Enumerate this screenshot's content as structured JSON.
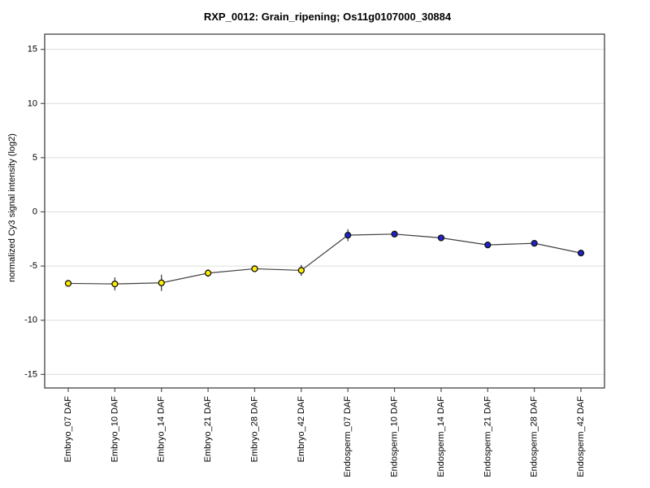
{
  "page": {
    "background": "#ffffff"
  },
  "chart_data": {
    "type": "line",
    "title": "RXP_0012: Grain_ripening; Os11g0107000_30884",
    "xlabel": "",
    "ylabel": "normalized Cy3 signal intensity (log2)",
    "categories": [
      "Embryo_07 DAF",
      "Embryo_10 DAF",
      "Embryo_14 DAF",
      "Embryo_21 DAF",
      "Embryo_28 DAF",
      "Embryo_42 DAF",
      "Endosperm_07 DAF",
      "Endosperm_10 DAF",
      "Endosperm_14 DAF",
      "Endosperm_21 DAF",
      "Endosperm_28 DAF",
      "Endosperm_42 DAF"
    ],
    "values": [
      -6.6,
      -6.65,
      -6.55,
      -5.65,
      -5.25,
      -5.4,
      -2.15,
      -2.05,
      -2.4,
      -3.05,
      -2.9,
      -3.8
    ],
    "errors": [
      0.1,
      0.6,
      0.75,
      0.35,
      0.1,
      0.5,
      0.55,
      0.3,
      0.2,
      0.1,
      0.25,
      0.1
    ],
    "groups": [
      "Embryo",
      "Embryo",
      "Embryo",
      "Embryo",
      "Embryo",
      "Embryo",
      "Endosperm",
      "Endosperm",
      "Endosperm",
      "Endosperm",
      "Endosperm",
      "Endosperm"
    ],
    "group_colors": {
      "Embryo": "#FFEE00",
      "Endosperm": "#2222CC"
    },
    "marker_border": "#111111",
    "line_color": "#404040",
    "error_bar_color": "#333333",
    "grid": true,
    "grid_color": "#DDDDDD",
    "frame_color": "#333333",
    "tick_color": "#555555",
    "text_color": "#000000",
    "yticks": [
      15,
      10,
      5,
      0,
      -5,
      -10,
      -15
    ],
    "ylim": [
      -16.25,
      16.4
    ],
    "legend_position": "none"
  }
}
